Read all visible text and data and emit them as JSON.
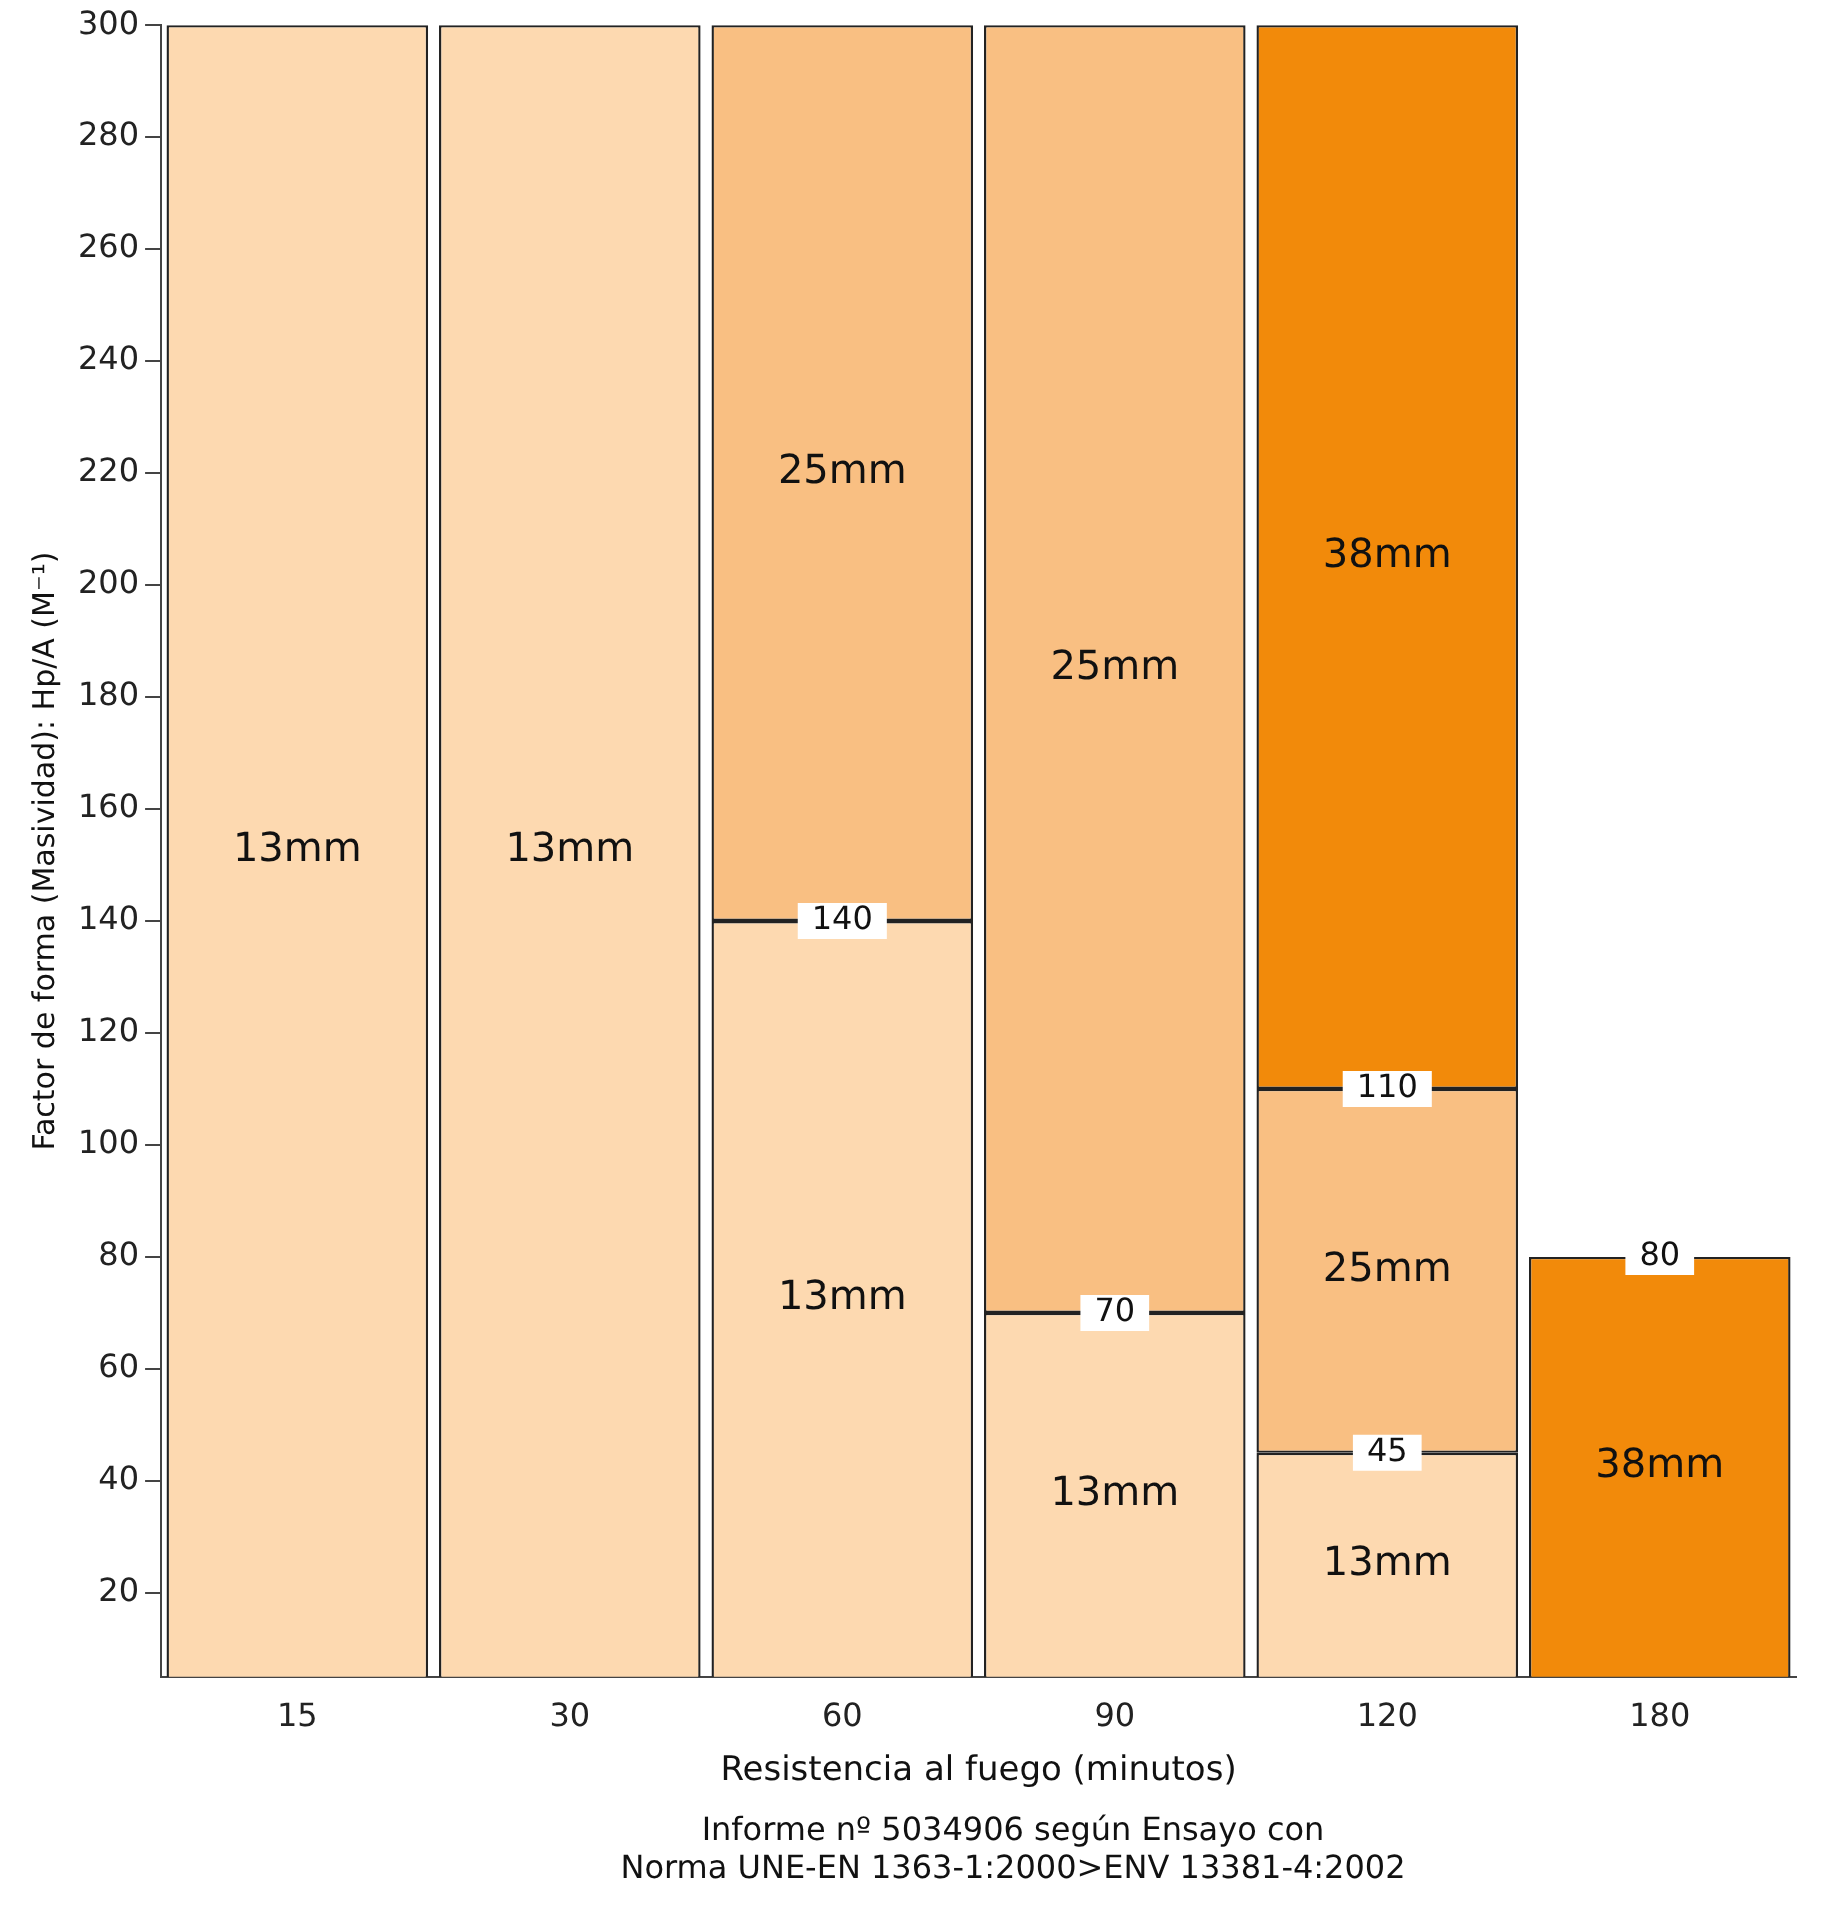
{
  "chart_data": {
    "type": "bar",
    "stacked": true,
    "xlabel": "Resistencia al fuego (minutos)",
    "ylabel": "Factor de forma (Masividad): Hp/A (M⁻¹)",
    "categories": [
      "15",
      "30",
      "60",
      "90",
      "120",
      "180"
    ],
    "series": [
      {
        "name": "13mm",
        "color": "#fdd9b0",
        "values": [
          300,
          300,
          140,
          70,
          45,
          null
        ]
      },
      {
        "name": "25mm",
        "color": "#f9bf82",
        "values": [
          null,
          null,
          160,
          230,
          65,
          null
        ]
      },
      {
        "name": "38mm",
        "color": "#f28a0a",
        "values": [
          null,
          null,
          null,
          null,
          190,
          80
        ]
      }
    ],
    "ylim": [
      5,
      300
    ],
    "yticks": [
      20,
      40,
      60,
      80,
      100,
      120,
      140,
      160,
      180,
      200,
      220,
      240,
      260,
      280,
      300
    ],
    "grid": false,
    "legend": false,
    "annotations": [
      {
        "text": "140",
        "x": "60",
        "y": 140
      },
      {
        "text": "70",
        "x": "90",
        "y": 70
      },
      {
        "text": "45",
        "x": "120",
        "y": 45
      },
      {
        "text": "110",
        "x": "120",
        "y": 110
      },
      {
        "text": "80",
        "x": "180",
        "y": 80
      },
      "Informe nº 5034906 según Ensayo con",
      "Norma UNE-EN 1363-1:2000>ENV 13381-4:2002"
    ]
  }
}
